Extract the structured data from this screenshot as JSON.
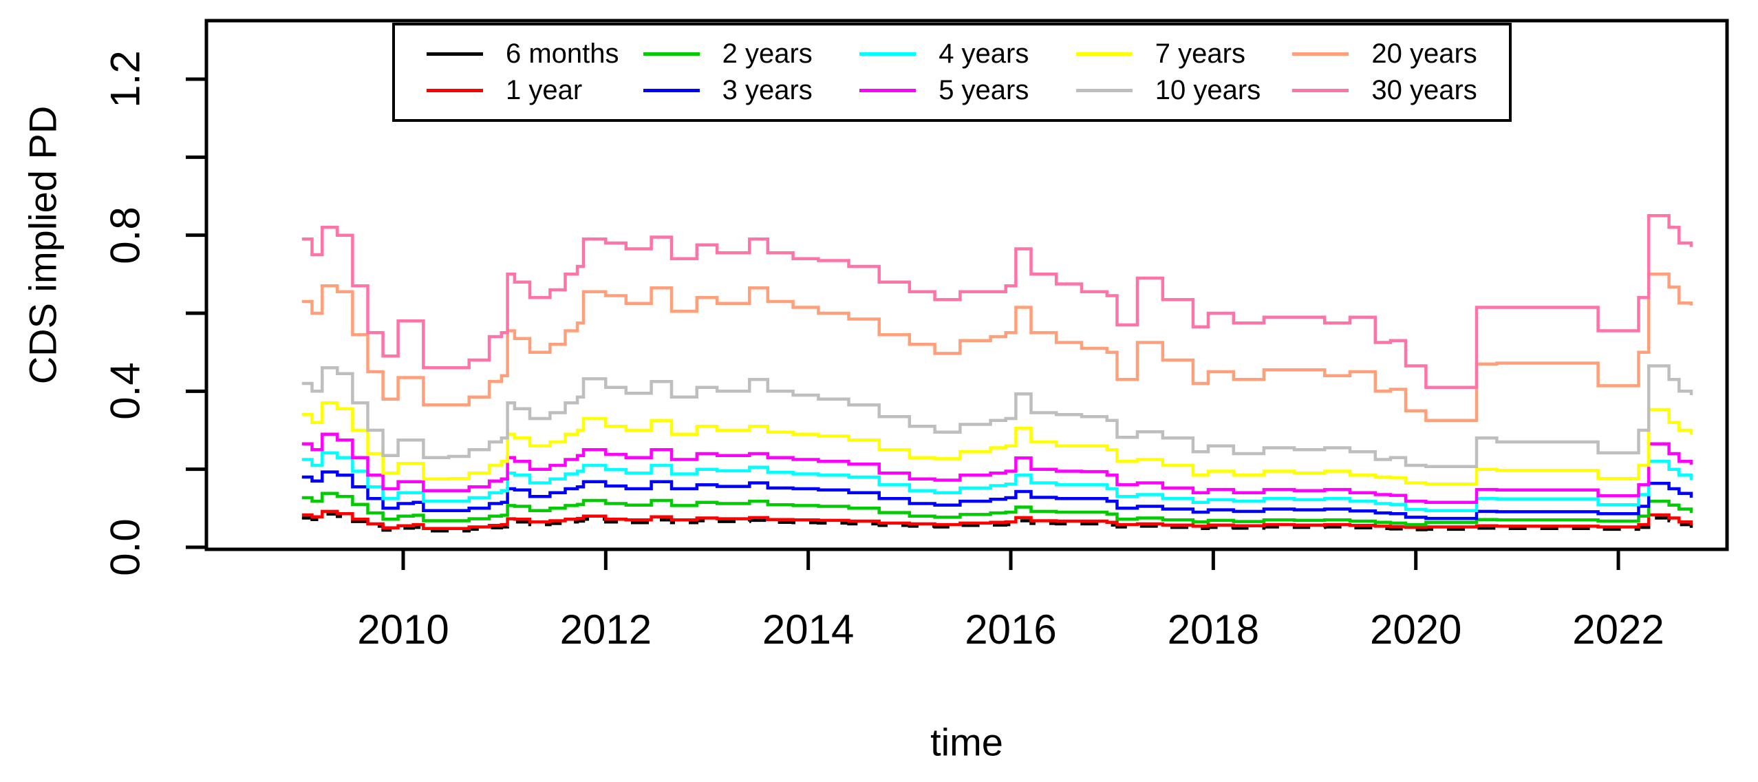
{
  "chart_data": {
    "type": "line",
    "title": "",
    "xlabel": "time",
    "ylabel": "CDS implied PD",
    "xlim": [
      2008.85,
      2023.05
    ],
    "ylim": [
      0.0,
      1.28
    ],
    "grid": false,
    "legend_position": "top-inside",
    "x_ticks": [
      2010,
      2012,
      2014,
      2016,
      2018,
      2020,
      2022
    ],
    "x_tick_labels": [
      "2010",
      "2012",
      "2014",
      "2016",
      "2018",
      "2020",
      "2022"
    ],
    "y_ticks": [
      0.0,
      0.2,
      0.4,
      0.6,
      0.8,
      1.0,
      1.2
    ],
    "y_tick_labels": [
      "0.0",
      "",
      "0.4",
      "",
      "0.8",
      "",
      "1.2"
    ],
    "x": [
      2009.0,
      2009.1,
      2009.2,
      2009.35,
      2009.5,
      2009.65,
      2009.8,
      2009.95,
      2010.1,
      2010.2,
      2010.45,
      2010.65,
      2010.85,
      2010.97,
      2011.03,
      2011.1,
      2011.25,
      2011.45,
      2011.6,
      2011.72,
      2011.78,
      2012.0,
      2012.2,
      2012.45,
      2012.65,
      2012.9,
      2013.1,
      2013.42,
      2013.6,
      2013.85,
      2014.1,
      2014.4,
      2014.7,
      2015.0,
      2015.25,
      2015.5,
      2015.8,
      2015.95,
      2016.05,
      2016.2,
      2016.45,
      2016.7,
      2016.95,
      2017.05,
      2017.25,
      2017.5,
      2017.8,
      2017.95,
      2018.2,
      2018.5,
      2018.8,
      2019.1,
      2019.35,
      2019.6,
      2019.75,
      2019.9,
      2020.1,
      2020.45,
      2020.6,
      2020.8,
      2021.2,
      2021.7,
      2021.8,
      2022.1,
      2022.2,
      2022.3,
      2022.4,
      2022.5,
      2022.6,
      2022.72
    ],
    "series": [
      {
        "name": "6 months",
        "color": "#000000",
        "dashed": true,
        "values": [
          0.075,
          0.071,
          0.085,
          0.079,
          0.066,
          0.054,
          0.044,
          0.049,
          0.051,
          0.042,
          0.042,
          0.046,
          0.05,
          0.052,
          0.066,
          0.065,
          0.058,
          0.061,
          0.065,
          0.067,
          0.072,
          0.065,
          0.063,
          0.07,
          0.063,
          0.068,
          0.066,
          0.069,
          0.064,
          0.063,
          0.062,
          0.06,
          0.056,
          0.054,
          0.052,
          0.056,
          0.057,
          0.058,
          0.068,
          0.061,
          0.06,
          0.06,
          0.057,
          0.052,
          0.054,
          0.051,
          0.048,
          0.051,
          0.049,
          0.052,
          0.051,
          0.052,
          0.05,
          0.048,
          0.047,
          0.045,
          0.046,
          0.046,
          0.049,
          0.048,
          0.048,
          0.048,
          0.046,
          0.046,
          0.051,
          0.075,
          0.075,
          0.068,
          0.058,
          0.05
        ]
      },
      {
        "name": "1 year",
        "color": "#FF0000",
        "dashed": false,
        "values": [
          0.083,
          0.078,
          0.092,
          0.086,
          0.072,
          0.06,
          0.05,
          0.055,
          0.058,
          0.048,
          0.048,
          0.052,
          0.056,
          0.058,
          0.073,
          0.072,
          0.065,
          0.068,
          0.072,
          0.074,
          0.08,
          0.072,
          0.07,
          0.078,
          0.07,
          0.075,
          0.073,
          0.076,
          0.071,
          0.07,
          0.069,
          0.067,
          0.062,
          0.06,
          0.058,
          0.062,
          0.064,
          0.065,
          0.076,
          0.068,
          0.067,
          0.067,
          0.064,
          0.058,
          0.06,
          0.057,
          0.054,
          0.057,
          0.055,
          0.058,
          0.057,
          0.058,
          0.056,
          0.054,
          0.053,
          0.051,
          0.052,
          0.052,
          0.055,
          0.054,
          0.054,
          0.054,
          0.052,
          0.052,
          0.058,
          0.083,
          0.083,
          0.075,
          0.065,
          0.057
        ]
      },
      {
        "name": "2 years",
        "color": "#00CC00",
        "dashed": false,
        "values": [
          0.127,
          0.118,
          0.138,
          0.13,
          0.11,
          0.088,
          0.072,
          0.08,
          0.082,
          0.068,
          0.068,
          0.073,
          0.08,
          0.082,
          0.107,
          0.105,
          0.094,
          0.1,
          0.107,
          0.11,
          0.12,
          0.112,
          0.108,
          0.12,
          0.107,
          0.115,
          0.112,
          0.118,
          0.109,
          0.107,
          0.105,
          0.1,
          0.089,
          0.08,
          0.077,
          0.084,
          0.088,
          0.09,
          0.103,
          0.092,
          0.09,
          0.09,
          0.085,
          0.072,
          0.075,
          0.07,
          0.065,
          0.069,
          0.066,
          0.07,
          0.069,
          0.07,
          0.067,
          0.064,
          0.062,
          0.058,
          0.064,
          0.064,
          0.071,
          0.07,
          0.07,
          0.07,
          0.067,
          0.067,
          0.08,
          0.118,
          0.118,
          0.108,
          0.098,
          0.088
        ]
      },
      {
        "name": "3 years",
        "color": "#0000FF",
        "dashed": false,
        "values": [
          0.18,
          0.17,
          0.193,
          0.185,
          0.155,
          0.125,
          0.1,
          0.112,
          0.115,
          0.094,
          0.094,
          0.1,
          0.112,
          0.115,
          0.15,
          0.147,
          0.13,
          0.14,
          0.15,
          0.155,
          0.168,
          0.157,
          0.15,
          0.168,
          0.15,
          0.16,
          0.156,
          0.165,
          0.152,
          0.15,
          0.147,
          0.14,
          0.125,
          0.112,
          0.108,
          0.118,
          0.123,
          0.127,
          0.143,
          0.128,
          0.125,
          0.125,
          0.118,
          0.1,
          0.105,
          0.098,
          0.09,
          0.096,
          0.092,
          0.098,
          0.096,
          0.098,
          0.093,
          0.088,
          0.086,
          0.077,
          0.074,
          0.074,
          0.092,
          0.091,
          0.091,
          0.091,
          0.086,
          0.086,
          0.105,
          0.164,
          0.164,
          0.15,
          0.138,
          0.127
        ]
      },
      {
        "name": "4 years",
        "color": "#00FFFF",
        "dashed": false,
        "values": [
          0.225,
          0.21,
          0.242,
          0.23,
          0.195,
          0.155,
          0.125,
          0.14,
          0.14,
          0.118,
          0.118,
          0.127,
          0.14,
          0.145,
          0.19,
          0.185,
          0.165,
          0.175,
          0.188,
          0.195,
          0.21,
          0.199,
          0.19,
          0.21,
          0.188,
          0.2,
          0.196,
          0.205,
          0.192,
          0.188,
          0.185,
          0.18,
          0.16,
          0.145,
          0.14,
          0.152,
          0.158,
          0.162,
          0.185,
          0.165,
          0.16,
          0.16,
          0.15,
          0.13,
          0.135,
          0.125,
          0.115,
          0.122,
          0.118,
          0.125,
          0.122,
          0.125,
          0.118,
          0.112,
          0.11,
          0.097,
          0.094,
          0.094,
          0.125,
          0.124,
          0.124,
          0.124,
          0.109,
          0.109,
          0.135,
          0.22,
          0.22,
          0.2,
          0.185,
          0.173
        ]
      },
      {
        "name": "5 years",
        "color": "#FF00FF",
        "dashed": false,
        "values": [
          0.265,
          0.25,
          0.29,
          0.275,
          0.23,
          0.185,
          0.15,
          0.168,
          0.168,
          0.145,
          0.145,
          0.155,
          0.17,
          0.175,
          0.23,
          0.22,
          0.2,
          0.21,
          0.225,
          0.235,
          0.25,
          0.238,
          0.23,
          0.25,
          0.225,
          0.24,
          0.235,
          0.24,
          0.23,
          0.225,
          0.22,
          0.213,
          0.19,
          0.175,
          0.172,
          0.185,
          0.19,
          0.195,
          0.229,
          0.2,
          0.195,
          0.194,
          0.185,
          0.16,
          0.165,
          0.152,
          0.14,
          0.148,
          0.14,
          0.148,
          0.145,
          0.148,
          0.14,
          0.135,
          0.133,
          0.118,
          0.115,
          0.115,
          0.148,
          0.147,
          0.147,
          0.147,
          0.132,
          0.132,
          0.16,
          0.265,
          0.265,
          0.24,
          0.22,
          0.212
        ]
      },
      {
        "name": "7 years",
        "color": "#FFFF00",
        "dashed": false,
        "values": [
          0.34,
          0.32,
          0.37,
          0.355,
          0.3,
          0.24,
          0.19,
          0.215,
          0.215,
          0.175,
          0.176,
          0.19,
          0.21,
          0.22,
          0.29,
          0.28,
          0.26,
          0.27,
          0.29,
          0.3,
          0.33,
          0.31,
          0.3,
          0.325,
          0.29,
          0.31,
          0.3,
          0.31,
          0.295,
          0.29,
          0.285,
          0.275,
          0.25,
          0.23,
          0.227,
          0.245,
          0.255,
          0.26,
          0.305,
          0.27,
          0.26,
          0.26,
          0.25,
          0.22,
          0.225,
          0.21,
          0.185,
          0.195,
          0.185,
          0.195,
          0.19,
          0.195,
          0.185,
          0.18,
          0.178,
          0.165,
          0.162,
          0.162,
          0.2,
          0.197,
          0.197,
          0.197,
          0.176,
          0.176,
          0.21,
          0.353,
          0.353,
          0.32,
          0.3,
          0.29
        ]
      },
      {
        "name": "10 years",
        "color": "#BEBEBE",
        "dashed": false,
        "values": [
          0.42,
          0.4,
          0.46,
          0.445,
          0.37,
          0.3,
          0.235,
          0.275,
          0.275,
          0.23,
          0.233,
          0.25,
          0.27,
          0.28,
          0.37,
          0.355,
          0.33,
          0.345,
          0.37,
          0.385,
          0.432,
          0.41,
          0.395,
          0.425,
          0.385,
          0.41,
          0.4,
          0.43,
          0.4,
          0.39,
          0.38,
          0.365,
          0.335,
          0.31,
          0.295,
          0.315,
          0.325,
          0.33,
          0.393,
          0.345,
          0.34,
          0.335,
          0.325,
          0.282,
          0.296,
          0.28,
          0.245,
          0.26,
          0.24,
          0.255,
          0.25,
          0.255,
          0.245,
          0.225,
          0.23,
          0.21,
          0.207,
          0.207,
          0.28,
          0.27,
          0.27,
          0.27,
          0.242,
          0.242,
          0.3,
          0.465,
          0.465,
          0.43,
          0.4,
          0.39
        ]
      },
      {
        "name": "20 years",
        "color": "#FFA07A",
        "dashed": false,
        "values": [
          0.63,
          0.6,
          0.67,
          0.655,
          0.545,
          0.45,
          0.38,
          0.435,
          0.435,
          0.365,
          0.365,
          0.385,
          0.425,
          0.44,
          0.555,
          0.535,
          0.5,
          0.52,
          0.555,
          0.575,
          0.655,
          0.645,
          0.625,
          0.665,
          0.605,
          0.64,
          0.625,
          0.665,
          0.63,
          0.615,
          0.6,
          0.585,
          0.545,
          0.52,
          0.497,
          0.53,
          0.54,
          0.55,
          0.615,
          0.55,
          0.525,
          0.51,
          0.5,
          0.43,
          0.525,
          0.48,
          0.42,
          0.45,
          0.43,
          0.455,
          0.455,
          0.44,
          0.45,
          0.4,
          0.405,
          0.35,
          0.325,
          0.325,
          0.47,
          0.472,
          0.472,
          0.472,
          0.414,
          0.414,
          0.5,
          0.7,
          0.7,
          0.667,
          0.626,
          0.62
        ]
      },
      {
        "name": "30 years",
        "color": "#FF74A8",
        "dashed": false,
        "values": [
          0.79,
          0.75,
          0.82,
          0.8,
          0.67,
          0.55,
          0.49,
          0.58,
          0.58,
          0.46,
          0.46,
          0.48,
          0.54,
          0.55,
          0.7,
          0.68,
          0.64,
          0.66,
          0.7,
          0.72,
          0.79,
          0.78,
          0.765,
          0.795,
          0.74,
          0.775,
          0.755,
          0.79,
          0.755,
          0.74,
          0.735,
          0.72,
          0.68,
          0.655,
          0.635,
          0.655,
          0.655,
          0.67,
          0.765,
          0.7,
          0.675,
          0.655,
          0.645,
          0.57,
          0.69,
          0.635,
          0.565,
          0.6,
          0.575,
          0.59,
          0.59,
          0.575,
          0.59,
          0.525,
          0.53,
          0.465,
          0.41,
          0.41,
          0.615,
          0.615,
          0.615,
          0.615,
          0.555,
          0.555,
          0.64,
          0.85,
          0.85,
          0.82,
          0.78,
          0.77
        ]
      }
    ],
    "legend_columns": [
      [
        "6 months",
        "1 year"
      ],
      [
        "2 years",
        "3 years"
      ],
      [
        "4 years",
        "5 years"
      ],
      [
        "7 years",
        "10 years"
      ],
      [
        "20 years",
        "30 years"
      ]
    ]
  }
}
